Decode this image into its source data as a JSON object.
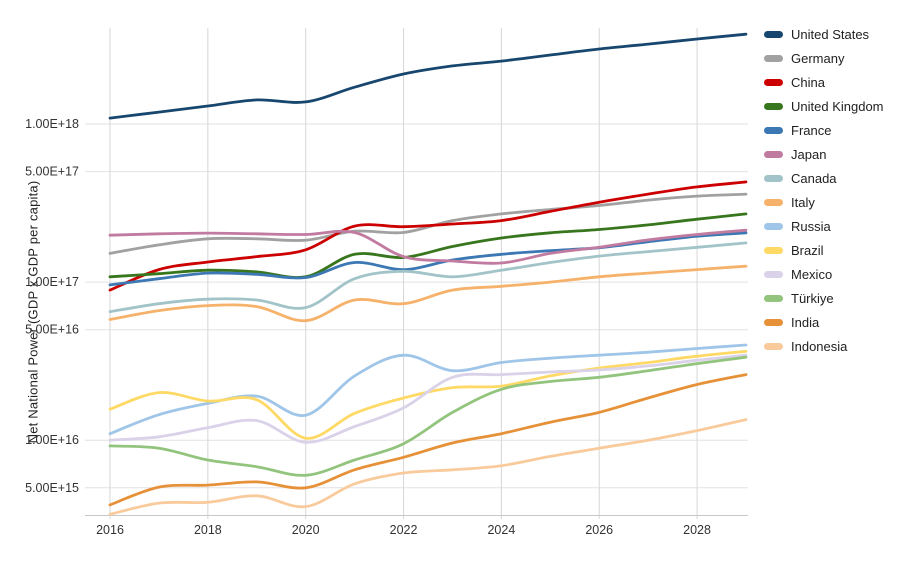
{
  "chart_data": {
    "type": "line",
    "title": "",
    "xlabel": "",
    "ylabel": "Net National Power (GDP x GDP per capita)",
    "y_scale": "log",
    "grid": true,
    "legend_position": "right",
    "x": [
      2016,
      2017,
      2018,
      2019,
      2020,
      2021,
      2022,
      2023,
      2024,
      2025,
      2026,
      2027,
      2028,
      2029
    ],
    "x_ticks": [
      2016,
      2018,
      2020,
      2022,
      2024,
      2026,
      2028
    ],
    "xlim": [
      2016,
      2029
    ],
    "ylim": [
      3200000000000000.0,
      4.2e+18
    ],
    "y_ticks": [
      {
        "v": 1e+18,
        "label": "1.00E+18"
      },
      {
        "v": 5e+17,
        "label": "5.00E+17"
      },
      {
        "v": 1e+17,
        "label": "1.00E+17"
      },
      {
        "v": 5e+16,
        "label": "5.00E+16"
      },
      {
        "v": 1e+16,
        "label": "1.00E+16"
      },
      {
        "v": 5000000000000000.0,
        "label": "5.00E+15"
      }
    ],
    "series": [
      {
        "name": "United States",
        "color": "#17466e",
        "values": [
          1.09e+18,
          1.19e+18,
          1.3e+18,
          1.42e+18,
          1.38e+18,
          1.71e+18,
          2.07e+18,
          2.33e+18,
          2.5e+18,
          2.73e+18,
          2.98e+18,
          3.2e+18,
          3.45e+18,
          3.7e+18
        ]
      },
      {
        "name": "Germany",
        "color": "#a1a1a1",
        "values": [
          1.52e+17,
          1.72e+17,
          1.88e+17,
          1.88e+17,
          1.84e+17,
          2.1e+17,
          2.06e+17,
          2.45e+17,
          2.7e+17,
          2.88e+17,
          3.05e+17,
          3.3e+17,
          3.5e+17,
          3.6e+17
        ]
      },
      {
        "name": "China",
        "color": "#cc0000",
        "values": [
          8.9e+16,
          1.2e+17,
          1.34e+17,
          1.45e+17,
          1.6e+17,
          2.26e+17,
          2.24e+17,
          2.33e+17,
          2.45e+17,
          2.8e+17,
          3.2e+17,
          3.6e+17,
          4e+17,
          4.3e+17
        ]
      },
      {
        "name": "United Kingdom",
        "color": "#38761d",
        "values": [
          1.08e+17,
          1.13e+17,
          1.19e+17,
          1.16e+17,
          1.08e+17,
          1.5e+17,
          1.43e+17,
          1.68e+17,
          1.9e+17,
          2.05e+17,
          2.15e+17,
          2.3e+17,
          2.5e+17,
          2.7e+17
        ]
      },
      {
        "name": "France",
        "color": "#3c78b4",
        "values": [
          9.6e+16,
          1.05e+17,
          1.14e+17,
          1.12e+17,
          1.07e+17,
          1.33e+17,
          1.2e+17,
          1.38e+17,
          1.5e+17,
          1.58e+17,
          1.65e+17,
          1.8e+17,
          1.95e+17,
          2.05e+17
        ]
      },
      {
        "name": "Japan",
        "color": "#c27ba0",
        "values": [
          1.98e+17,
          2.02e+17,
          2.04e+17,
          2.02e+17,
          2e+17,
          2.06e+17,
          1.45e+17,
          1.36e+17,
          1.32e+17,
          1.52e+17,
          1.66e+17,
          1.85e+17,
          2e+17,
          2.13e+17
        ]
      },
      {
        "name": "Canada",
        "color": "#a2c4c9",
        "values": [
          6.5e+16,
          7.3e+16,
          7.8e+16,
          7.7e+16,
          6.9e+16,
          1.05e+17,
          1.17e+17,
          1.08e+17,
          1.19e+17,
          1.33e+17,
          1.46e+17,
          1.56e+17,
          1.66e+17,
          1.77e+17
        ]
      },
      {
        "name": "Italy",
        "color": "#f6b26b",
        "values": [
          5.8e+16,
          6.6e+16,
          7.1e+16,
          7e+16,
          5.7e+16,
          7.7e+16,
          7.3e+16,
          8.9e+16,
          9.4e+16,
          1e+17,
          1.08e+17,
          1.14e+17,
          1.2e+17,
          1.26e+17
        ]
      },
      {
        "name": "Russia",
        "color": "#9fc5e8",
        "values": [
          1.1e+16,
          1.45e+16,
          1.71e+16,
          1.9e+16,
          1.44e+16,
          2.55e+16,
          3.45e+16,
          2.75e+16,
          3.1e+16,
          3.3e+16,
          3.45e+16,
          3.6e+16,
          3.8e+16,
          4e+16
        ]
      },
      {
        "name": "Brazil",
        "color": "#ffd966",
        "values": [
          1.57e+16,
          2e+16,
          1.77e+16,
          1.8e+16,
          1.03e+16,
          1.48e+16,
          1.85e+16,
          2.15e+16,
          2.2e+16,
          2.55e+16,
          2.86e+16,
          3.1e+16,
          3.4e+16,
          3.65e+16
        ]
      },
      {
        "name": "Mexico",
        "color": "#d9d2e9",
        "values": [
          1e+16,
          1.05e+16,
          1.2e+16,
          1.33e+16,
          9700000000000000.0,
          1.22e+16,
          1.6e+16,
          2.5e+16,
          2.6e+16,
          2.7e+16,
          2.78e+16,
          2.95e+16,
          3.2e+16,
          3.45e+16
        ]
      },
      {
        "name": "Türkiye",
        "color": "#93c47d",
        "values": [
          9200000000000000.0,
          8900000000000000.0,
          7500000000000000.0,
          6800000000000000.0,
          6000000000000000.0,
          7500000000000000.0,
          9500000000000000.0,
          1.5e+16,
          2.1e+16,
          2.35e+16,
          2.5e+16,
          2.75e+16,
          3.05e+16,
          3.35e+16
        ]
      },
      {
        "name": "India",
        "color": "#e69138",
        "values": [
          3900000000000000.0,
          5050000000000000.0,
          5200000000000000.0,
          5450000000000000.0,
          5000000000000000.0,
          6500000000000000.0,
          7800000000000000.0,
          9600000000000000.0,
          1.1e+16,
          1.3e+16,
          1.5e+16,
          1.85e+16,
          2.25e+16,
          2.6e+16
        ]
      },
      {
        "name": "Indonesia",
        "color": "#f9cb9c",
        "values": [
          3400000000000000.0,
          4000000000000000.0,
          4050000000000000.0,
          4450000000000000.0,
          3800000000000000.0,
          5300000000000000.0,
          6200000000000000.0,
          6500000000000000.0,
          6900000000000000.0,
          7900000000000000.0,
          8900000000000000.0,
          1e+16,
          1.15e+16,
          1.35e+16
        ]
      }
    ],
    "axis_text_color": "#333333",
    "hgrid_color": "#e2e2e2",
    "vgrid_color": "#d6d6d6",
    "axis_line_color": "#c8c8c8"
  }
}
